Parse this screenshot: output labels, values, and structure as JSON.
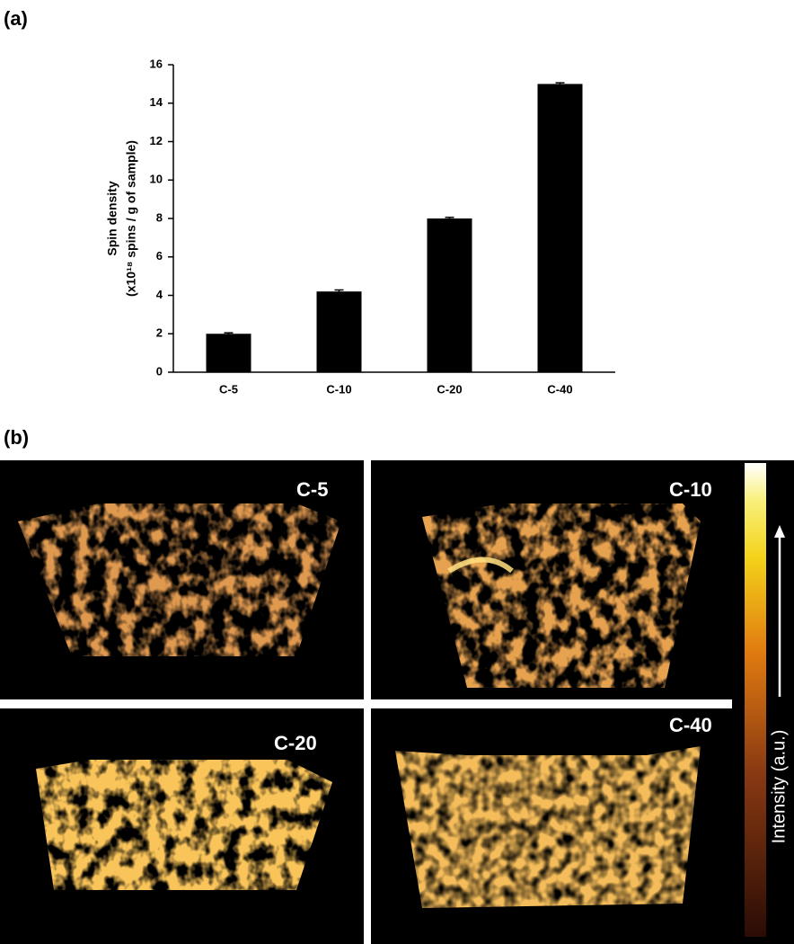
{
  "panel_labels": [
    "(a)",
    "(b)"
  ],
  "chart_data": {
    "type": "bar",
    "ylabel": [
      "Spin density",
      "(x10¹⁸ spins / g of sample)"
    ],
    "categories": [
      "C-5",
      "C-10",
      "C-20",
      "C-40"
    ],
    "values": [
      2.0,
      4.2,
      8.0,
      15.0
    ],
    "errors": [
      0.05,
      0.08,
      0.06,
      0.06
    ],
    "color": "#000000",
    "ylim": [
      0,
      16
    ],
    "yticks": [
      0,
      2,
      4,
      6,
      8,
      10,
      12,
      14,
      16
    ],
    "grid": false
  },
  "images": [
    {
      "label": "C-5"
    },
    {
      "label": "C-10"
    },
    {
      "label": "C-20"
    },
    {
      "label": "C-40"
    }
  ],
  "colorbar": {
    "label": "Intensity (a.u.)"
  }
}
